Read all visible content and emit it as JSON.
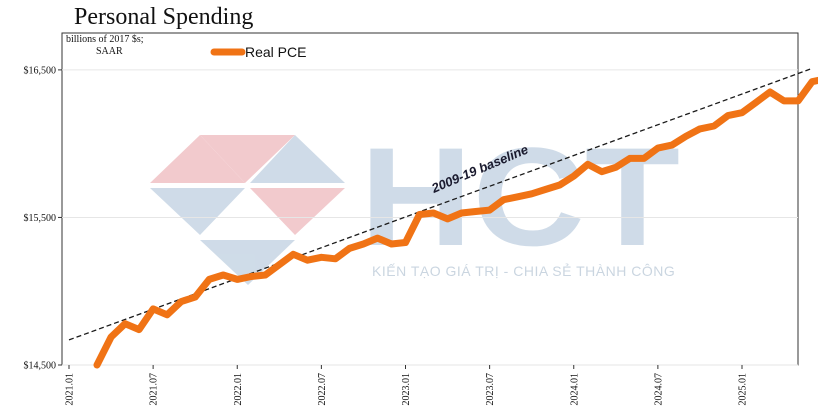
{
  "chart_data": {
    "type": "line",
    "title": "Personal Spending",
    "unit_label_line1": "billions of 2017 $s;",
    "unit_label_line2": "SAAR",
    "ylim": [
      14500,
      16750
    ],
    "y_ticks": [
      {
        "value": 14500,
        "label": "$14,500"
      },
      {
        "value": 15500,
        "label": "$15,500"
      },
      {
        "value": 16500,
        "label": "$16,500"
      }
    ],
    "x_ticks": [
      "2021.01",
      "2021.07",
      "2022.01",
      "2022.07",
      "2023.01",
      "2023.07",
      "2024.01",
      "2024.07",
      "2025.01"
    ],
    "grid": true,
    "legend_position": "top-left",
    "series": [
      {
        "name": "Real PCE",
        "color": "#f07315",
        "start": "2021.03",
        "values": [
          14500,
          14690,
          14780,
          14740,
          14880,
          14840,
          14930,
          14960,
          15080,
          15110,
          15080,
          15100,
          15110,
          15180,
          15250,
          15210,
          15230,
          15220,
          15290,
          15320,
          15360,
          15320,
          15330,
          15520,
          15530,
          15490,
          15530,
          15540,
          15550,
          15620,
          15640,
          15660,
          15690,
          15720,
          15780,
          15860,
          15810,
          15840,
          15900,
          15900,
          15970,
          15990,
          16050,
          16100,
          16120,
          16190,
          16210,
          16280,
          16350,
          16290,
          16290,
          16420,
          16440
        ]
      },
      {
        "name": "2009-19 baseline",
        "color": "#1a1a1a",
        "dashed": true,
        "x": [
          "2021.01",
          "2025.06"
        ],
        "values": [
          14670,
          16510
        ]
      }
    ]
  },
  "watermark": {
    "brand": "HCT",
    "slogan": "KIẾN TẠO GIÁ TRỊ - CHIA SẺ THÀNH CÔNG",
    "colors": {
      "red": "#e8a0a6",
      "blue": "#a8bfd6"
    }
  }
}
